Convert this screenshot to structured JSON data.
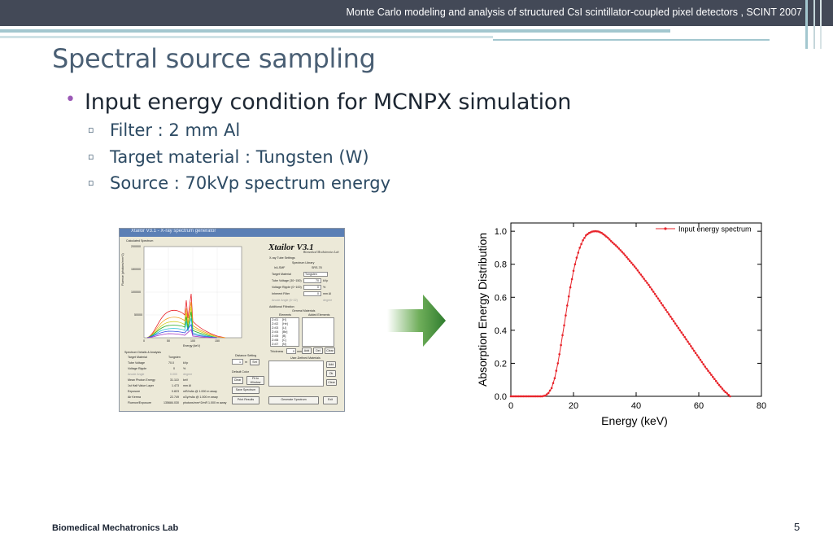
{
  "header": {
    "text": "Monte Carlo modeling and analysis of structured CsI scintillator-coupled pixel detectors , SCINT 2007",
    "colors": {
      "bar": "#434957",
      "strip_teal": "#a3c7cf",
      "strip_light": "#cfe2e6"
    }
  },
  "slide": {
    "title": "Spectral source sampling",
    "bullet": "Input energy condition for MCNPX simulation",
    "bullet_marker": "•",
    "sub_marker": "▫",
    "sub_bullets": [
      "Filter : 2 mm Al",
      "Target material : Tungsten (W)",
      "Source : 70kVp spectrum energy"
    ]
  },
  "footer": {
    "lab": "Biomedical Mechatronics Lab",
    "page_number": "5"
  },
  "software": {
    "window_title": "Xtailor V3.1 - X-ray spectrum generator",
    "logo": "Xtailor V3.1",
    "logo_sub": "Biomedical Mechatronics Lab",
    "plot_title": "Calculated Spectrum",
    "plot_ylabel": "Fluence (photons/mm^2)",
    "plot_xlabel": "Energy (keV)",
    "plot_xticks": [
      "0",
      "50",
      "100",
      "150"
    ],
    "plot_yticks": [
      "200000",
      "150000",
      "100000",
      "50000",
      "0"
    ],
    "xray_settings": "X-ray Tube Settings",
    "spectrum_library": "Spectrum Library",
    "radio_1": "IrA-SMF",
    "radio_2": "SRS-78",
    "target_label": "Target Material",
    "target_value": "Tungsten",
    "voltage_label": "Tube Voltage (30~150)",
    "voltage_value": "70",
    "voltage_unit": "kVp",
    "ripple_label": "Voltage Ripple (0~100)",
    "ripple_value": "0",
    "ripple_unit": "%",
    "filter_label": "Inherent Filter",
    "filter_value": "0",
    "filter_unit": "mm Al",
    "anode_label": "Anode Angle (6~22)",
    "anode_unit": "degree",
    "add_filtration": "Additional Filtration",
    "general_materials": "General Materials",
    "elements": "Elements",
    "added_elements": "Added Elements",
    "element_list": [
      "Z=01",
      "Z=02",
      "Z=03",
      "Z=04",
      "Z=05",
      "Z=06",
      "Z=07"
    ],
    "element_names": [
      "[H]",
      "[He]",
      "[Li]",
      "[Be]",
      "[B]",
      "[C]",
      "[N]"
    ],
    "thickness_label": "Thickness",
    "thickness_value": "0",
    "thickness_unit": "mm",
    "add": "Add",
    "del": "Del",
    "clear": "Clear",
    "user_defined": "User-Defined Materials",
    "ok": "Ok",
    "details": "Spectrum Details & Analysis",
    "detail_rows": [
      [
        "Target Material",
        "Tungsten",
        ""
      ],
      [
        "Tube Voltage",
        "70.0",
        "kVp"
      ],
      [
        "Voltage Ripple",
        "0",
        "%"
      ],
      [
        "Anode Angle",
        "0.000",
        "degree"
      ],
      [
        "Mean Photon Energy",
        "31.110",
        "keV"
      ],
      [
        "1st Half Value Layer",
        "1.473",
        "mm Al"
      ],
      [
        "Exposure",
        "0.823",
        "mR/mAs @ 1.000 m away"
      ],
      [
        "Air Kerma",
        "22.749",
        "uGy/mAs @ 1.000 m away"
      ],
      [
        "Fluence/Exposure",
        "135684.030",
        "photons/mm^2/mR 1.000 m away"
      ]
    ],
    "distance": "Distance Setting",
    "distance_value": "1",
    "distance_unit": "m",
    "set": "Set",
    "default_color": "Default Color",
    "fit_window": "Fit to Window",
    "save_spectrum": "Save Spectrum",
    "print_results": "Print Results",
    "generate": "Generate Spectrum",
    "exit": "Exit"
  },
  "chart_data": {
    "type": "line",
    "legend": "Input energy spectrum",
    "legend_position": "top-right",
    "xlabel": "Energy (keV)",
    "ylabel": "Absorption Energy Distribution",
    "xlim": [
      0,
      80
    ],
    "ylim": [
      0,
      1.05
    ],
    "xticks": [
      0,
      20,
      40,
      60,
      80
    ],
    "yticks": [
      0.0,
      0.2,
      0.4,
      0.6,
      0.8,
      1.0
    ],
    "grid": false,
    "color": "#e8242b",
    "series": [
      {
        "name": "Input energy spectrum",
        "x": [
          0,
          2,
          4,
          6,
          8,
          10,
          11,
          12,
          13,
          14,
          15,
          16,
          17,
          18,
          19,
          20,
          21,
          22,
          23,
          24,
          25,
          26,
          27,
          28,
          29,
          30,
          31,
          32,
          34,
          36,
          38,
          40,
          42,
          44,
          46,
          48,
          50,
          52,
          54,
          56,
          58,
          60,
          62,
          64,
          66,
          68,
          70
        ],
        "y": [
          0,
          0,
          0,
          0,
          0,
          0,
          0.005,
          0.02,
          0.05,
          0.11,
          0.2,
          0.31,
          0.43,
          0.55,
          0.66,
          0.76,
          0.84,
          0.9,
          0.945,
          0.975,
          0.99,
          0.998,
          1.0,
          0.998,
          0.99,
          0.975,
          0.96,
          0.94,
          0.905,
          0.865,
          0.82,
          0.775,
          0.725,
          0.675,
          0.62,
          0.565,
          0.51,
          0.455,
          0.4,
          0.345,
          0.29,
          0.235,
          0.18,
          0.13,
          0.08,
          0.035,
          0.0
        ]
      }
    ]
  }
}
